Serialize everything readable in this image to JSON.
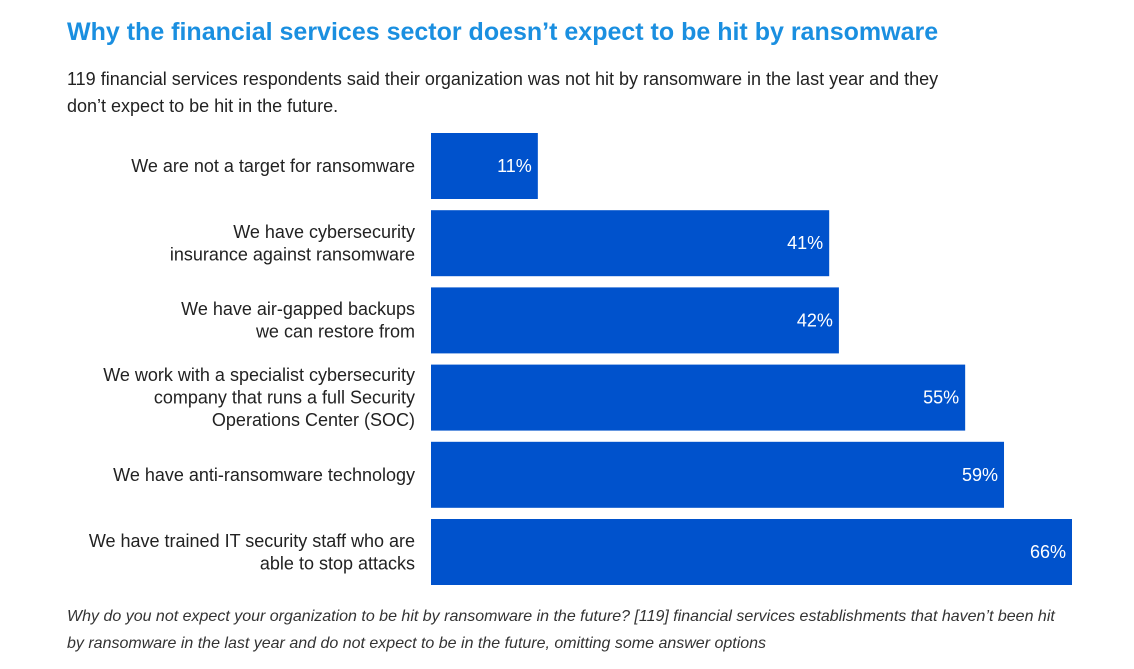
{
  "heading": {
    "title": "Why the financial services sector doesn’t expect to be hit by ransomware",
    "subtitle": "119 financial services respondents said their organization was not hit by ransomware in the last year and they don’t expect to be hit in the future."
  },
  "footnote": "Why do you not expect your organization to be hit by ransomware in the future? [119] financial services establishments that haven’t been hit by ransomware in the last year and do not expect to be in the future, omitting some answer options",
  "colors": {
    "bar": "#0052cc",
    "bar_label": "#ffffff",
    "category_label": "#222222",
    "title": "#1a8fe0"
  },
  "chart_data": {
    "type": "bar",
    "orientation": "horizontal",
    "categories": [
      [
        "We are not a target for ransomware"
      ],
      [
        "We have cybersecurity",
        "insurance against ransomware"
      ],
      [
        "We have air-gapped backups",
        "we can restore from"
      ],
      [
        "We work with a specialist cybersecurity",
        "company that runs a full Security",
        "Operations Center (SOC)"
      ],
      [
        "We have anti-ransomware technology"
      ],
      [
        "We have trained IT security staff who are",
        "able to stop attacks"
      ]
    ],
    "values": [
      11,
      41,
      42,
      55,
      59,
      66
    ],
    "value_labels": [
      "11%",
      "41%",
      "42%",
      "55%",
      "59%",
      "66%"
    ],
    "xlim": [
      0,
      66
    ],
    "unit": "%",
    "grid": false,
    "legend": "none"
  }
}
